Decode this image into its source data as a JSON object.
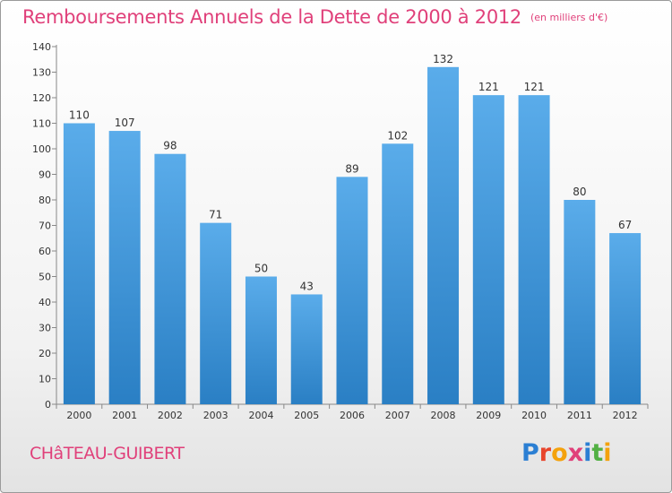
{
  "header": {
    "title": "Remboursements Annuels de la Dette de 2000 à 2012",
    "unit": "(en milliers d'€)"
  },
  "footer": {
    "commune": "CHâTEAU-GUIBERT",
    "logo_letters": [
      "P",
      "r",
      "o",
      "x",
      "i",
      "t",
      "i"
    ],
    "logo_colors": [
      "#2b7fd3",
      "#e8452c",
      "#f4a20d",
      "#e0407a",
      "#2b7fd3",
      "#52b043",
      "#f4a20d"
    ]
  },
  "chart_data": {
    "type": "bar",
    "categories": [
      "2000",
      "2001",
      "2002",
      "2003",
      "2004",
      "2005",
      "2006",
      "2007",
      "2008",
      "2009",
      "2010",
      "2011",
      "2012"
    ],
    "values": [
      110,
      107,
      98,
      71,
      50,
      43,
      89,
      102,
      132,
      121,
      121,
      80,
      67
    ],
    "ylim": [
      0,
      140
    ],
    "yticks": [
      0,
      10,
      20,
      30,
      40,
      50,
      60,
      70,
      80,
      90,
      100,
      110,
      120,
      130,
      140
    ],
    "grid": false,
    "bar_color_top": "#5aacea",
    "bar_color_bottom": "#2a7fc4",
    "axis_color": "#888888"
  }
}
